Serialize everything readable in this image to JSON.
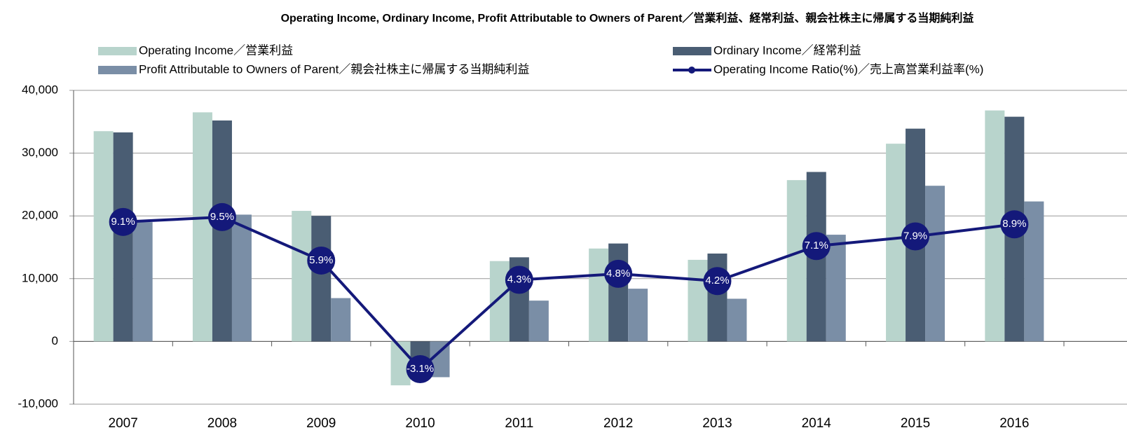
{
  "chart_data": {
    "type": "bar",
    "title": "Operating Income, Ordinary Income, Profit Attributable to Owners of Parent／営業利益、経常利益、親会社株主に帰属する当期純利益",
    "categories": [
      "2007",
      "2008",
      "2009",
      "2010",
      "2011",
      "2012",
      "2013",
      "2014",
      "2015",
      "2016"
    ],
    "series": [
      {
        "name": "Operating Income／営業利益",
        "color": "#b8d4cc",
        "values": [
          33500,
          36500,
          20800,
          -7000,
          12800,
          14800,
          13000,
          25700,
          31500,
          36800
        ]
      },
      {
        "name": "Ordinary Income／経常利益",
        "color": "#4a5d73",
        "values": [
          33300,
          35200,
          20000,
          -3500,
          13400,
          15600,
          14000,
          27000,
          33900,
          35800
        ]
      },
      {
        "name": "Profit Attributable to Owners of Parent／親会社株主に帰属する当期純利益",
        "color": "#7a8ea6",
        "values": [
          19000,
          20200,
          6900,
          -5700,
          6500,
          8400,
          6800,
          17000,
          24800,
          22300
        ]
      },
      {
        "name": "Operating Income Ratio(%)／売上高営業利益率(%)",
        "color": "#14197a",
        "type": "line",
        "axis": "y2",
        "values": [
          9.1,
          9.5,
          5.9,
          -3.1,
          4.3,
          4.8,
          4.2,
          7.1,
          7.9,
          8.9
        ],
        "value_labels": [
          "9.1%",
          "9.5%",
          "5.9%",
          "-3.1%",
          "4.3%",
          "4.8%",
          "4.2%",
          "7.1%",
          "7.9%",
          "8.9%"
        ]
      }
    ],
    "ylim": [
      -10000,
      40000
    ],
    "yticks": [
      {
        "value": -10000,
        "label": "-10,000"
      },
      0,
      {
        "value": 10000,
        "label": "10,000"
      },
      {
        "value": 20000,
        "label": "20,000"
      },
      {
        "value": 30000,
        "label": "30,000"
      },
      {
        "value": 40000,
        "label": "40,000"
      }
    ],
    "y2lim": [
      -6,
      20
    ],
    "grid": true
  }
}
